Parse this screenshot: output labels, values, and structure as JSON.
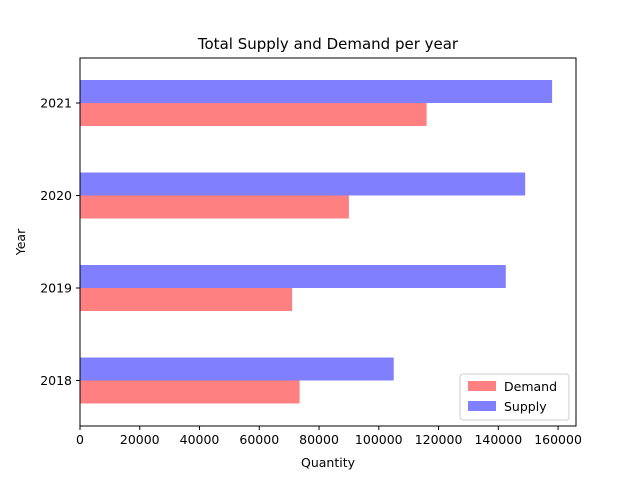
{
  "chart_data": {
    "type": "bar",
    "orientation": "horizontal",
    "title": "Total Supply and Demand per year",
    "xlabel": "Quantity",
    "ylabel": "Year",
    "categories": [
      "2018",
      "2019",
      "2020",
      "2021"
    ],
    "series": [
      {
        "name": "Demand",
        "color": "#ff8080",
        "values": [
          73500,
          71000,
          90000,
          116000
        ]
      },
      {
        "name": "Supply",
        "color": "#8080ff",
        "values": [
          105000,
          142500,
          149000,
          158000
        ]
      }
    ],
    "xlim": [
      0,
      166000
    ],
    "xticks": [
      0,
      20000,
      40000,
      60000,
      80000,
      100000,
      120000,
      140000,
      160000
    ],
    "xtick_labels": [
      "0",
      "20000",
      "40000",
      "60000",
      "80000",
      "100000",
      "120000",
      "140000",
      "160000"
    ],
    "grid": false,
    "legend_position": "lower-right"
  }
}
